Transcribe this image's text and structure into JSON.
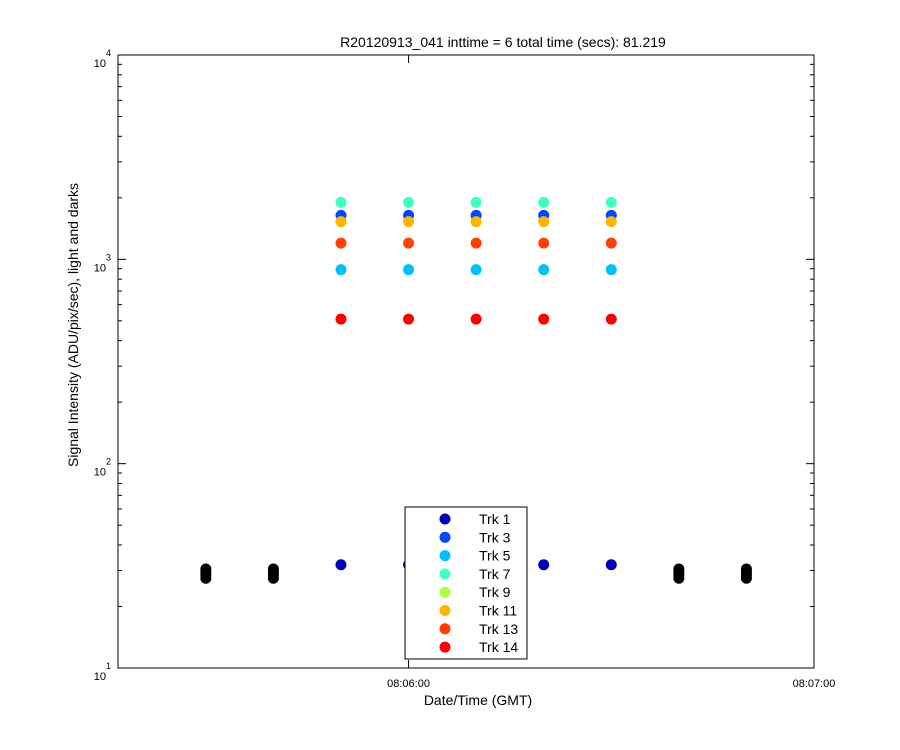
{
  "chart_data": {
    "type": "scatter",
    "title": "R20120913_041 inttime = 6 total time (secs): 81.219",
    "xlabel": "Date/Time (GMT)",
    "ylabel": "Signal Intensity (ADU/pix/sec), light and darks",
    "y_scale": "log",
    "ylim": [
      10,
      10000
    ],
    "xlim": [
      "08:05:17",
      "08:07:00"
    ],
    "x_ticks": [
      "08:06:00",
      "08:07:00"
    ],
    "y_ticks": [
      {
        "value": 10,
        "base": "10",
        "exp": "1"
      },
      {
        "value": 100,
        "base": "10",
        "exp": "2"
      },
      {
        "value": 1000,
        "base": "10",
        "exp": "3"
      },
      {
        "value": 10000,
        "base": "10",
        "exp": "4"
      }
    ],
    "grid": false,
    "legend_position": "bottom-center",
    "light_times": [
      "08:05:50",
      "08:06:00",
      "08:06:10",
      "08:06:20",
      "08:06:30"
    ],
    "series": [
      {
        "name": "Trk 1",
        "color": "#0000b4",
        "values": [
          32,
          32,
          32,
          32,
          32
        ]
      },
      {
        "name": "Trk 3",
        "color": "#0045ff",
        "values": [
          1640,
          1640,
          1640,
          1640,
          1640
        ]
      },
      {
        "name": "Trk 5",
        "color": "#00c0ff",
        "values": [
          890,
          890,
          890,
          890,
          890
        ]
      },
      {
        "name": "Trk 7",
        "color": "#40ffc0",
        "values": [
          1900,
          1900,
          1900,
          1900,
          1900
        ]
      },
      {
        "name": "Trk 9",
        "color": "#b0ff40",
        "values": [
          null,
          null,
          null,
          null,
          null
        ]
      },
      {
        "name": "Trk 11",
        "color": "#ffb400",
        "values": [
          1530,
          1530,
          1530,
          1530,
          1530
        ]
      },
      {
        "name": "Trk 13",
        "color": "#ff4000",
        "values": [
          1200,
          1200,
          1200,
          1200,
          1200
        ]
      },
      {
        "name": "Trk 14",
        "color": "#ff0000",
        "values": [
          510,
          510,
          510,
          510,
          510
        ]
      }
    ],
    "darks": {
      "color": "#000000",
      "times": [
        "08:05:30",
        "08:05:40",
        "08:06:40",
        "08:06:50"
      ],
      "values": [
        27.5,
        28.5,
        29.5,
        30.5
      ]
    }
  }
}
